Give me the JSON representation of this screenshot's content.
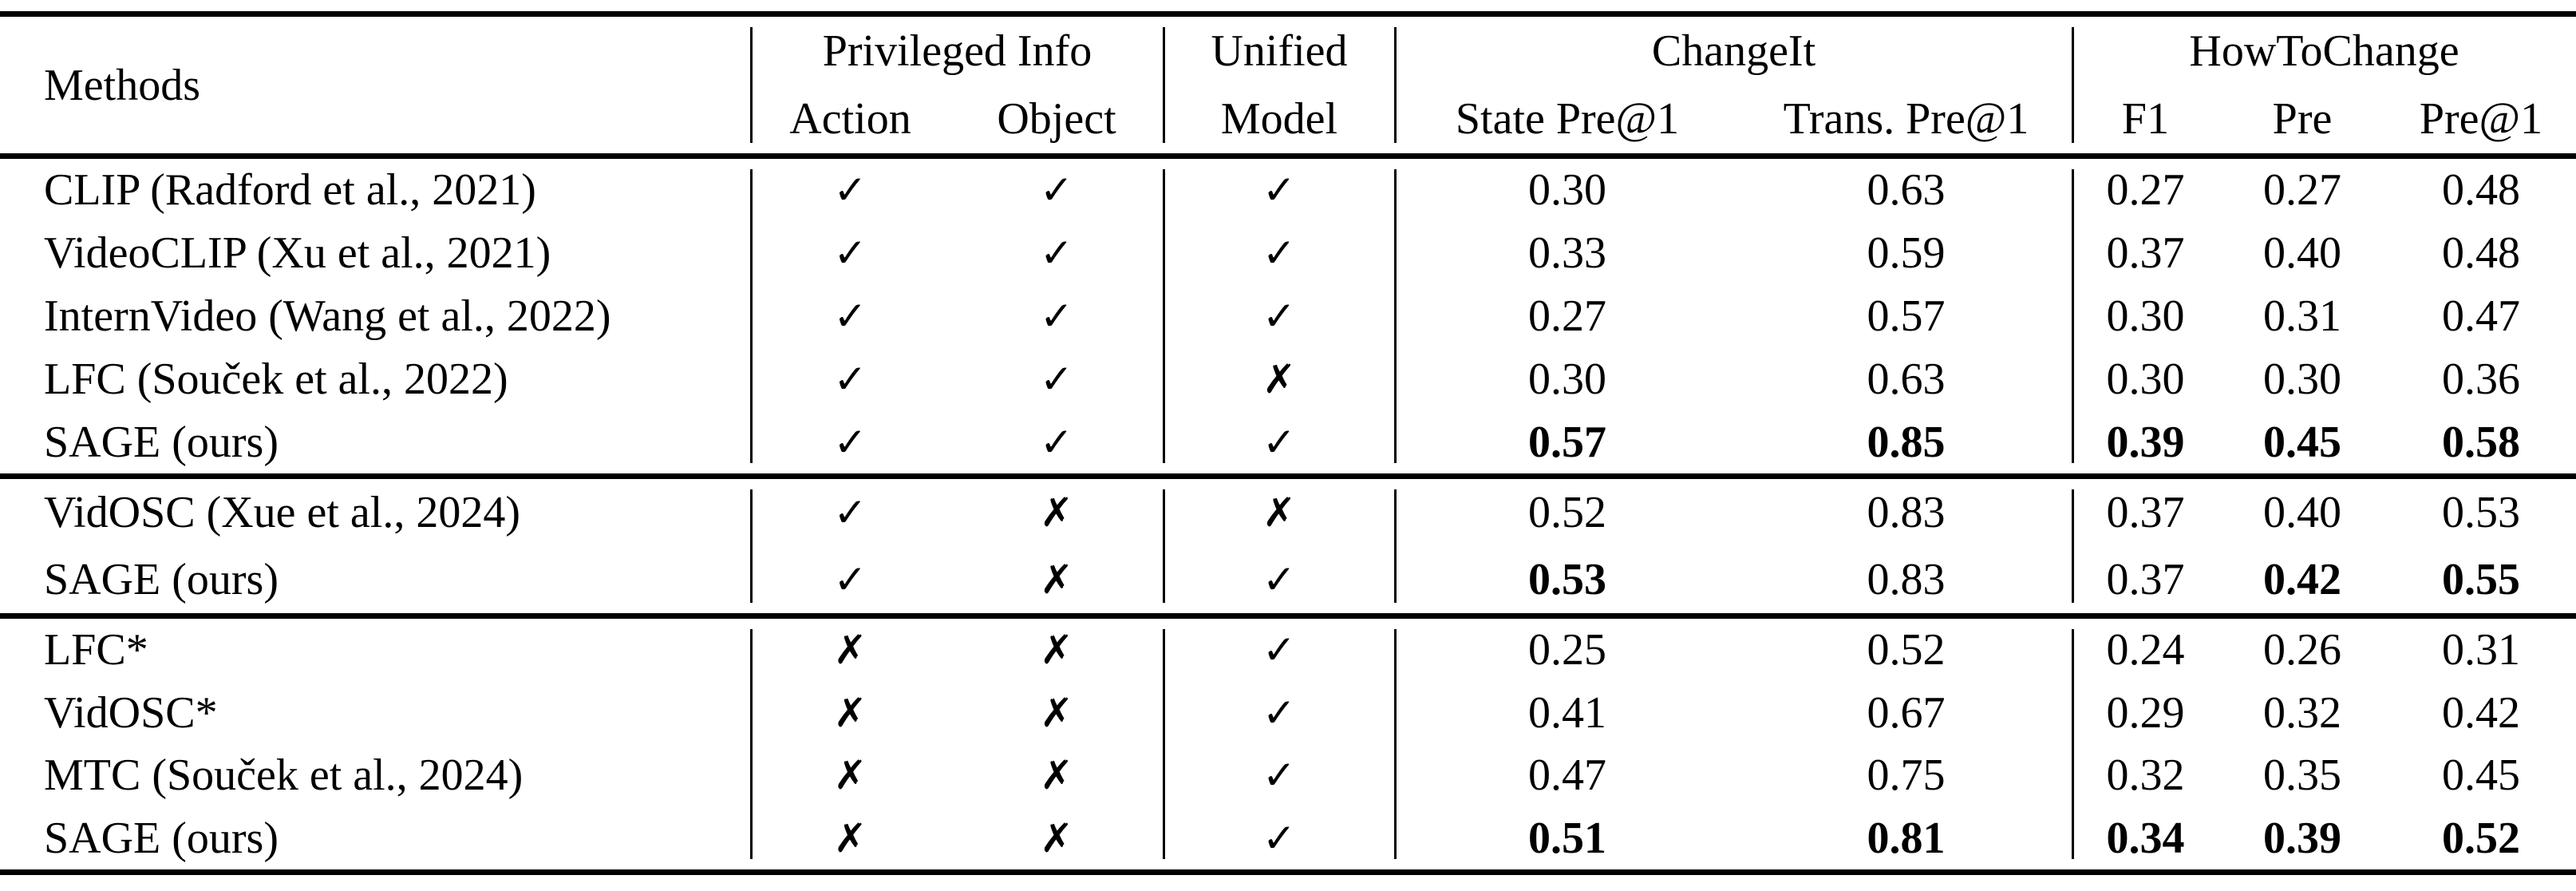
{
  "colors": {
    "background": "#ffffff",
    "text": "#000000",
    "rule": "#000000"
  },
  "table": {
    "symbols": {
      "check": "✓",
      "cross": "✗"
    },
    "header": {
      "methods_label": "Methods",
      "privileged_info": {
        "label": "Privileged Info",
        "columns": [
          "Action",
          "Object"
        ]
      },
      "unified_model": {
        "line1": "Unified",
        "line2": "Model"
      },
      "changeit": {
        "label": "ChangeIt",
        "columns": [
          "State Pre@1",
          "Trans. Pre@1"
        ]
      },
      "howtochange": {
        "label": "HowToChange",
        "columns": [
          "F1",
          "Pre",
          "Pre@1"
        ]
      }
    },
    "sections": [
      {
        "rows": [
          {
            "method": "CLIP (Radford et al., 2021)",
            "marks": [
              "check",
              "check",
              "check"
            ],
            "values": [
              "0.30",
              "0.63",
              "0.27",
              "0.27",
              "0.48"
            ],
            "bold": [
              false,
              false,
              false,
              false,
              false
            ]
          },
          {
            "method": "VideoCLIP (Xu et al., 2021)",
            "marks": [
              "check",
              "check",
              "check"
            ],
            "values": [
              "0.33",
              "0.59",
              "0.37",
              "0.40",
              "0.48"
            ],
            "bold": [
              false,
              false,
              false,
              false,
              false
            ]
          },
          {
            "method": "InternVideo (Wang et al., 2022)",
            "marks": [
              "check",
              "check",
              "check"
            ],
            "values": [
              "0.27",
              "0.57",
              "0.30",
              "0.31",
              "0.47"
            ],
            "bold": [
              false,
              false,
              false,
              false,
              false
            ]
          },
          {
            "method": "LFC (Souček et al., 2022)",
            "marks": [
              "check",
              "check",
              "cross"
            ],
            "values": [
              "0.30",
              "0.63",
              "0.30",
              "0.30",
              "0.36"
            ],
            "bold": [
              false,
              false,
              false,
              false,
              false
            ]
          },
          {
            "method": "SAGE (ours)",
            "marks": [
              "check",
              "check",
              "check"
            ],
            "values": [
              "0.57",
              "0.85",
              "0.39",
              "0.45",
              "0.58"
            ],
            "bold": [
              true,
              true,
              true,
              true,
              true
            ]
          }
        ]
      },
      {
        "rows": [
          {
            "method": "VidOSC (Xue et al., 2024)",
            "marks": [
              "check",
              "cross",
              "cross"
            ],
            "values": [
              "0.52",
              "0.83",
              "0.37",
              "0.40",
              "0.53"
            ],
            "bold": [
              false,
              false,
              false,
              false,
              false
            ]
          },
          {
            "method": "SAGE (ours)",
            "marks": [
              "check",
              "cross",
              "check"
            ],
            "values": [
              "0.53",
              "0.83",
              "0.37",
              "0.42",
              "0.55"
            ],
            "bold": [
              true,
              false,
              false,
              true,
              true
            ]
          }
        ]
      },
      {
        "rows": [
          {
            "method": "LFC*",
            "marks": [
              "cross",
              "cross",
              "check"
            ],
            "values": [
              "0.25",
              "0.52",
              "0.24",
              "0.26",
              "0.31"
            ],
            "bold": [
              false,
              false,
              false,
              false,
              false
            ]
          },
          {
            "method": "VidOSC*",
            "marks": [
              "cross",
              "cross",
              "check"
            ],
            "values": [
              "0.41",
              "0.67",
              "0.29",
              "0.32",
              "0.42"
            ],
            "bold": [
              false,
              false,
              false,
              false,
              false
            ]
          },
          {
            "method": "MTC (Souček et al., 2024)",
            "marks": [
              "cross",
              "cross",
              "check"
            ],
            "values": [
              "0.47",
              "0.75",
              "0.32",
              "0.35",
              "0.45"
            ],
            "bold": [
              false,
              false,
              false,
              false,
              false
            ]
          },
          {
            "method": "SAGE (ours)",
            "marks": [
              "cross",
              "cross",
              "check"
            ],
            "values": [
              "0.51",
              "0.81",
              "0.34",
              "0.39",
              "0.52"
            ],
            "bold": [
              true,
              true,
              true,
              true,
              true
            ]
          }
        ]
      }
    ]
  }
}
